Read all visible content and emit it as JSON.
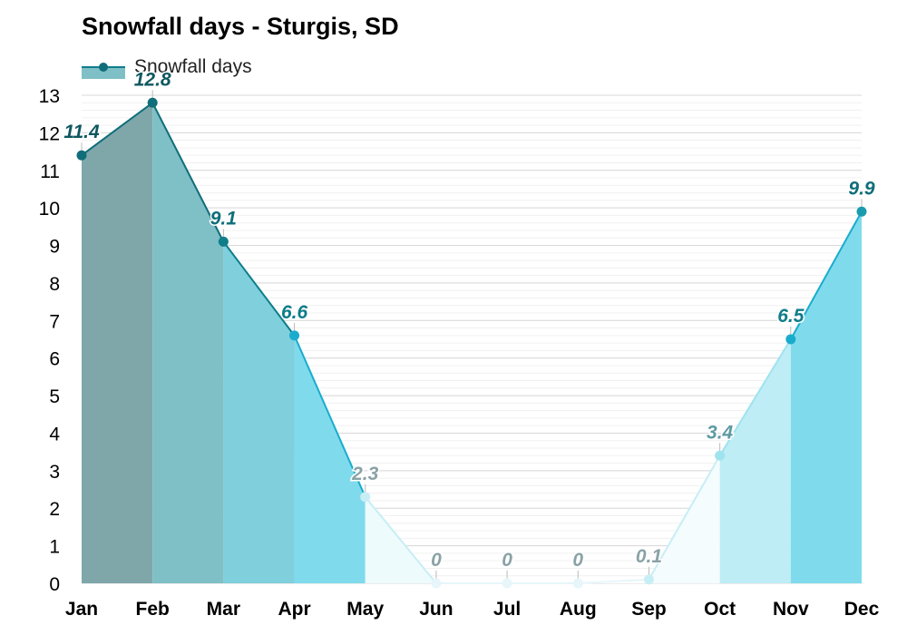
{
  "chart_data": {
    "type": "area",
    "title": "Snowfall days - Sturgis, SD",
    "xlabel": "",
    "ylabel": "",
    "categories": [
      "Jan",
      "Feb",
      "Mar",
      "Apr",
      "May",
      "Jun",
      "Jul",
      "Aug",
      "Sep",
      "Oct",
      "Nov",
      "Dec"
    ],
    "series": [
      {
        "name": "Snowfall days",
        "values": [
          11.4,
          12.8,
          9.1,
          6.6,
          2.3,
          0,
          0,
          0,
          0.1,
          3.4,
          6.5,
          9.9
        ],
        "labels": [
          "11.4",
          "12.8",
          "9.1",
          "6.6",
          "2.3",
          "0",
          "0",
          "0",
          "0.1",
          "3.4",
          "6.5",
          "9.9"
        ]
      }
    ],
    "y_ticks": [
      "0",
      "1",
      "2",
      "3",
      "4",
      "5",
      "6",
      "7",
      "8",
      "9",
      "10",
      "11",
      "12",
      "13"
    ],
    "ylim": [
      0,
      13
    ],
    "grid": true,
    "legend": "top-left",
    "month_colors": [
      "#7fa7aa",
      "#7fbfc6",
      "#7fcfdc",
      "#7fdbec",
      "#eefbfd",
      "#ffffff",
      "#ffffff",
      "#ffffff",
      "#f5fcfe",
      "#bfedf5",
      "#7fdbec",
      "#7fc6cf"
    ],
    "point_colors": [
      "#0f6e79",
      "#0f6e79",
      "#0f7d8a",
      "#1aaccd",
      "#c8eef5",
      "#e6f6fa",
      "#e6f6fa",
      "#e6f6fa",
      "#c8eef5",
      "#9fe3ef",
      "#1aaccd",
      "#1a9cae"
    ],
    "label_colors": [
      "#0f5860",
      "#0f5860",
      "#0f6e79",
      "#0f7d8a",
      "#8aa2a6",
      "#8aa2a6",
      "#8aa2a6",
      "#8aa2a6",
      "#8aa2a6",
      "#5e9aa2",
      "#0f7d8a",
      "#0f6e79"
    ]
  }
}
